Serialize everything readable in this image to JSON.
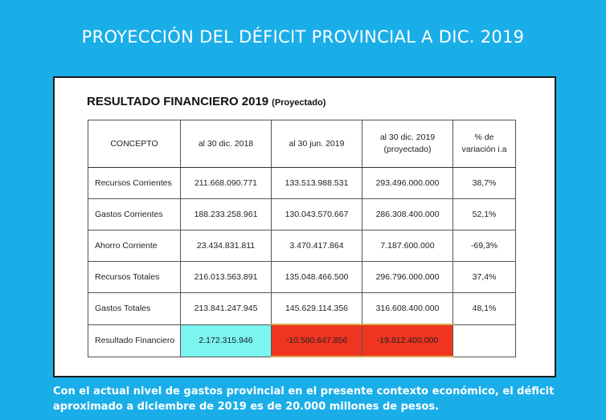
{
  "title": "PROYECCIÓN DEL DÉFICIT PROVINCIAL A DIC. 2019",
  "panel": {
    "heading": "RESULTADO FINANCIERO 2019",
    "heading_note": "(Proyectado)"
  },
  "table": {
    "headers": [
      [
        "CONCEPTO"
      ],
      [
        "al 30 dic. 2018"
      ],
      [
        "al 30 jun. 2019"
      ],
      [
        "al 30 dic. 2019",
        "(proyectado)"
      ],
      [
        "% de",
        "variación i.a"
      ]
    ],
    "rows": [
      [
        "Recursos Corrientes",
        "211.668.090.771",
        "133.513.988.531",
        "293.496.000.000",
        "38,7%"
      ],
      [
        "Gastos Corrientes",
        "188.233.258.961",
        "130.043.570.667",
        "286.308.400.000",
        "52,1%"
      ],
      [
        "Ahorro Corriente",
        "23.434.831.811",
        "3.470.417.864",
        "7.187.600.000",
        "-69,3%"
      ],
      [
        "Recursos Totales",
        "216.013.563.891",
        "135.048.466.500",
        "296.796.000.000",
        "37,4%"
      ],
      [
        "Gastos Totales",
        "213.841.247.945",
        "145.629.114.356",
        "316.608.400.000",
        "48,1%"
      ],
      [
        "Resultado Financiero",
        "2.172.315.946",
        "-10.580.647.856",
        "-19.812.400.000",
        ""
      ]
    ],
    "highlight_colors": {
      "positive": "#7af5f0",
      "negative": "#ef3420"
    }
  },
  "footer": {
    "line1": "Con el actual nivel de gastos provincial en el presente contexto económico, el déficit",
    "line2": "aproximado a diciembre de 2019 es de 20.000 millones de pesos."
  }
}
